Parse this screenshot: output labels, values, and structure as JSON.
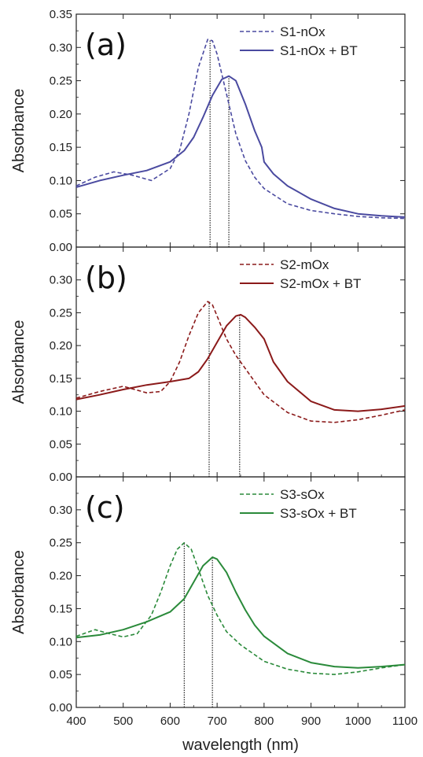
{
  "chart_data": [
    {
      "type": "line",
      "panel_label": "(a)",
      "color": "#4a4aa0",
      "ylabel": "Absorbance",
      "ylim": [
        0.0,
        0.35
      ],
      "yticks": [
        "0.00",
        "0.05",
        "0.10",
        "0.15",
        "0.20",
        "0.25",
        "0.30",
        "0.35"
      ],
      "xlim": [
        400,
        1100
      ],
      "markers_x": [
        685,
        725
      ],
      "legend_position": "top-right",
      "series": [
        {
          "name": "S1-nOx",
          "style": "dashed",
          "x": [
            400,
            440,
            480,
            520,
            560,
            600,
            620,
            640,
            660,
            680,
            690,
            700,
            720,
            740,
            760,
            780,
            800,
            850,
            900,
            950,
            1000,
            1050,
            1100
          ],
          "y": [
            0.092,
            0.105,
            0.113,
            0.108,
            0.1,
            0.118,
            0.145,
            0.2,
            0.27,
            0.312,
            0.31,
            0.29,
            0.23,
            0.17,
            0.13,
            0.105,
            0.088,
            0.065,
            0.055,
            0.05,
            0.046,
            0.044,
            0.043
          ]
        },
        {
          "name": "S1-nOx + BT",
          "style": "solid",
          "x": [
            400,
            450,
            500,
            550,
            600,
            630,
            650,
            670,
            690,
            710,
            725,
            740,
            760,
            780,
            795,
            800,
            820,
            850,
            900,
            950,
            1000,
            1050,
            1100
          ],
          "y": [
            0.09,
            0.1,
            0.108,
            0.115,
            0.128,
            0.145,
            0.165,
            0.195,
            0.228,
            0.252,
            0.257,
            0.25,
            0.215,
            0.175,
            0.15,
            0.128,
            0.11,
            0.092,
            0.072,
            0.058,
            0.05,
            0.047,
            0.045
          ]
        }
      ]
    },
    {
      "type": "line",
      "panel_label": "(b)",
      "color": "#8b1a1a",
      "ylabel": "Absorbance",
      "ylim": [
        0.0,
        0.35
      ],
      "yticks": [
        "0.00",
        "0.05",
        "0.10",
        "0.15",
        "0.20",
        "0.25",
        "0.30"
      ],
      "xlim": [
        400,
        1100
      ],
      "markers_x": [
        683,
        748
      ],
      "legend_position": "top-right",
      "series": [
        {
          "name": "S2-mOx",
          "style": "dashed",
          "x": [
            400,
            450,
            500,
            550,
            580,
            600,
            620,
            640,
            660,
            680,
            690,
            700,
            720,
            740,
            760,
            780,
            800,
            850,
            900,
            950,
            1000,
            1050,
            1100
          ],
          "y": [
            0.12,
            0.13,
            0.138,
            0.128,
            0.13,
            0.145,
            0.175,
            0.215,
            0.25,
            0.267,
            0.262,
            0.245,
            0.21,
            0.185,
            0.165,
            0.145,
            0.125,
            0.098,
            0.085,
            0.083,
            0.087,
            0.094,
            0.102
          ]
        },
        {
          "name": "S2-mOx + BT",
          "style": "solid",
          "x": [
            400,
            450,
            500,
            550,
            600,
            640,
            660,
            680,
            700,
            720,
            740,
            750,
            760,
            780,
            800,
            820,
            850,
            900,
            950,
            1000,
            1050,
            1100
          ],
          "y": [
            0.118,
            0.125,
            0.133,
            0.14,
            0.145,
            0.15,
            0.16,
            0.18,
            0.205,
            0.23,
            0.245,
            0.247,
            0.243,
            0.228,
            0.21,
            0.175,
            0.145,
            0.115,
            0.102,
            0.1,
            0.103,
            0.108
          ]
        }
      ]
    },
    {
      "type": "line",
      "panel_label": "(c)",
      "color": "#2a8a3a",
      "ylabel": "Absorbance",
      "ylim": [
        0.0,
        0.35
      ],
      "yticks": [
        "0.00",
        "0.05",
        "0.10",
        "0.15",
        "0.20",
        "0.25",
        "0.30"
      ],
      "xlim": [
        400,
        1100
      ],
      "xticks": [
        "400",
        "500",
        "600",
        "700",
        "800",
        "900",
        "1000",
        "1100"
      ],
      "xlabel": "wavelength (nm)",
      "markers_x": [
        630,
        690
      ],
      "legend_position": "top-right",
      "series": [
        {
          "name": "S3-sOx",
          "style": "dashed",
          "x": [
            400,
            440,
            470,
            500,
            530,
            560,
            580,
            600,
            615,
            630,
            645,
            660,
            680,
            700,
            720,
            750,
            780,
            800,
            850,
            900,
            950,
            1000,
            1050,
            1100
          ],
          "y": [
            0.108,
            0.118,
            0.112,
            0.107,
            0.112,
            0.14,
            0.175,
            0.215,
            0.24,
            0.25,
            0.24,
            0.21,
            0.17,
            0.14,
            0.115,
            0.095,
            0.08,
            0.07,
            0.058,
            0.052,
            0.05,
            0.054,
            0.06,
            0.065
          ]
        },
        {
          "name": "S3-sOx + BT",
          "style": "solid",
          "x": [
            400,
            450,
            500,
            550,
            600,
            630,
            650,
            670,
            690,
            700,
            720,
            740,
            760,
            780,
            800,
            850,
            900,
            950,
            1000,
            1050,
            1100
          ],
          "y": [
            0.106,
            0.11,
            0.118,
            0.13,
            0.145,
            0.165,
            0.19,
            0.215,
            0.228,
            0.225,
            0.205,
            0.175,
            0.148,
            0.125,
            0.108,
            0.082,
            0.068,
            0.062,
            0.06,
            0.062,
            0.065
          ]
        }
      ]
    }
  ]
}
